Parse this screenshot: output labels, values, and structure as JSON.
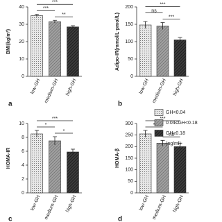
{
  "chart_data": [
    {
      "type": "bar",
      "panel": "a",
      "y_label": "BMI(kg/m²)",
      "categories": [
        "low-GH",
        "medium-GH",
        "high-GH"
      ],
      "values": [
        35,
        31.5,
        28.5
      ],
      "errors": [
        0.8,
        0.8,
        0.7
      ],
      "ylim": [
        0,
        40
      ],
      "yticks": [
        0,
        10,
        20,
        30,
        40
      ],
      "annotations": [
        {
          "between": [
            "medium-GH",
            "high-GH"
          ],
          "text": "**"
        },
        {
          "between": [
            "low-GH",
            "medium-GH"
          ],
          "text": "***"
        },
        {
          "between": [
            "low-GH",
            "high-GH"
          ],
          "text": "***"
        }
      ]
    },
    {
      "type": "bar",
      "panel": "b",
      "y_label": "Adipo-IR(mmol/L·pmol/L)",
      "categories": [
        "low-GH",
        "medium-GH",
        "high-GH"
      ],
      "values": [
        148,
        145,
        105
      ],
      "errors": [
        10,
        10,
        7
      ],
      "ylim": [
        0,
        200
      ],
      "yticks": [
        0,
        50,
        100,
        150,
        200
      ],
      "annotations": [
        {
          "between": [
            "medium-GH",
            "high-GH"
          ],
          "text": "***"
        },
        {
          "between": [
            "low-GH",
            "medium-GH"
          ],
          "text": "ns"
        },
        {
          "between": [
            "low-GH",
            "high-GH"
          ],
          "text": "***"
        }
      ]
    },
    {
      "type": "bar",
      "panel": "c",
      "y_label": "HOMA-IR",
      "categories": [
        "low-GH",
        "medium-GH",
        "high-GH"
      ],
      "values": [
        8.5,
        7.5,
        5.9
      ],
      "errors": [
        0.5,
        0.6,
        0.4
      ],
      "ylim": [
        0,
        10
      ],
      "yticks": [
        0,
        2,
        4,
        6,
        8,
        10
      ],
      "annotations": [
        {
          "between": [
            "medium-GH",
            "high-GH"
          ],
          "text": "*"
        },
        {
          "between": [
            "low-GH",
            "medium-GH"
          ],
          "text": "*"
        },
        {
          "between": [
            "low-GH",
            "high-GH"
          ],
          "text": "***"
        }
      ]
    },
    {
      "type": "bar",
      "panel": "d",
      "y_label": "HOMA-β",
      "categories": [
        "low-GH",
        "medium-GH",
        "high-GH"
      ],
      "values": [
        255,
        215,
        200
      ],
      "errors": [
        15,
        12,
        15
      ],
      "ylim": [
        0,
        300
      ],
      "yticks": [
        0,
        50,
        100,
        150,
        200,
        250,
        300
      ],
      "annotations": [
        {
          "between": [
            "medium-GH",
            "high-GH"
          ],
          "text": "ns"
        },
        {
          "between": [
            "low-GH",
            "medium-GH"
          ],
          "text": "*"
        },
        {
          "between": [
            "low-GH",
            "high-GH"
          ],
          "text": "***"
        }
      ]
    }
  ],
  "legend": {
    "items": [
      {
        "name": "GH<0.04",
        "color": "#e6e6e6"
      },
      {
        "name": "0.04≤GH<0.18",
        "color": "#a0a0a0"
      },
      {
        "name": "GH≥0.18",
        "color": "#3c3c3c"
      }
    ],
    "unit": "(ng/ml)"
  }
}
